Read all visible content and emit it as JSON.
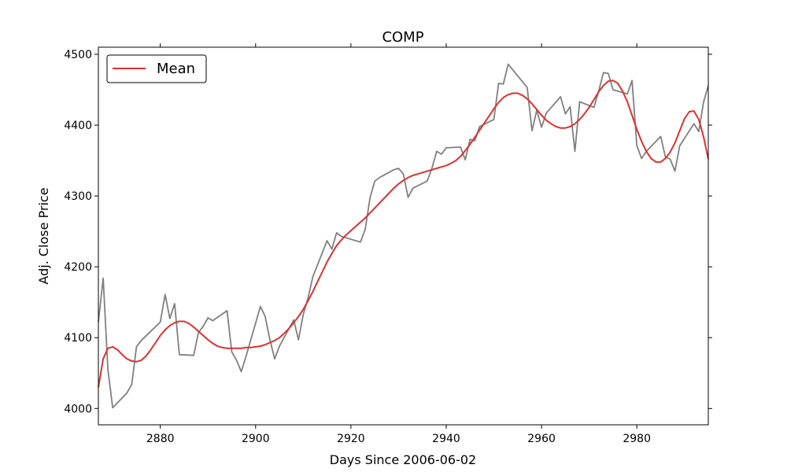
{
  "chart_data": {
    "type": "line",
    "title": "COMP",
    "xlabel": "Days Since 2006-06-02",
    "ylabel": "Adj. Close Price",
    "xlim": [
      2867,
      2995
    ],
    "ylim": [
      3977,
      4510
    ],
    "xticks": [
      2880,
      2900,
      2920,
      2940,
      2960,
      2980
    ],
    "yticks": [
      4000,
      4100,
      4200,
      4300,
      4400,
      4500
    ],
    "grid": false,
    "legend": {
      "placement": "top-left",
      "entries": [
        "Mean"
      ]
    },
    "colors": {
      "price": "#808080",
      "mean": "#e03030"
    },
    "series": [
      {
        "role": "price",
        "x": [
          2867,
          2868,
          2869,
          2870,
          2873,
          2874,
          2875,
          2876,
          2880,
          2881,
          2882,
          2883,
          2884,
          2887,
          2888,
          2889,
          2890,
          2891,
          2894,
          2895,
          2896,
          2897,
          2898,
          2901,
          2902,
          2903,
          2904,
          2905,
          2908,
          2909,
          2910,
          2911,
          2912,
          2915,
          2916,
          2917,
          2918,
          2919,
          2922,
          2923,
          2924,
          2925,
          2926,
          2929,
          2930,
          2931,
          2932,
          2933,
          2936,
          2937,
          2938,
          2939,
          2940,
          2943,
          2944,
          2945,
          2946,
          2947,
          2950,
          2951,
          2952,
          2953,
          2957,
          2958,
          2959,
          2960,
          2961,
          2964,
          2965,
          2966,
          2967,
          2968,
          2971,
          2972,
          2973,
          2974,
          2975,
          2978,
          2979,
          2980,
          2981,
          2982,
          2985,
          2986,
          2987,
          2988,
          2989,
          2992,
          2993,
          2994,
          2995
        ],
        "values": [
          4122,
          4184,
          4055,
          4001,
          4022,
          4034,
          4087,
          4096,
          4122,
          4161,
          4127,
          4148,
          4076,
          4075,
          4107,
          4116,
          4128,
          4124,
          4138,
          4080,
          4068,
          4052,
          4074,
          4144,
          4130,
          4097,
          4070,
          4088,
          4125,
          4097,
          4133,
          4156,
          4186,
          4237,
          4225,
          4248,
          4243,
          4241,
          4235,
          4253,
          4297,
          4321,
          4326,
          4337,
          4339,
          4331,
          4298,
          4311,
          4321,
          4339,
          4363,
          4359,
          4368,
          4369,
          4351,
          4380,
          4378,
          4398,
          4408,
          4459,
          4458,
          4486,
          4453,
          4392,
          4421,
          4397,
          4417,
          4440,
          4416,
          4426,
          4363,
          4433,
          4425,
          4448,
          4474,
          4473,
          4450,
          4444,
          4463,
          4371,
          4353,
          4363,
          4384,
          4355,
          4352,
          4335,
          4371,
          4402,
          4391,
          4432,
          4456
        ]
      },
      {
        "name": "Mean",
        "role": "mean",
        "x": [
          2867,
          2868,
          2869,
          2870,
          2871,
          2872,
          2873,
          2874,
          2875,
          2876,
          2877,
          2878,
          2879,
          2880,
          2881,
          2882,
          2883,
          2884,
          2885,
          2886,
          2887,
          2888,
          2889,
          2890,
          2891,
          2892,
          2893,
          2894,
          2895,
          2896,
          2897,
          2898,
          2899,
          2900,
          2901,
          2902,
          2903,
          2904,
          2905,
          2906,
          2907,
          2908,
          2909,
          2910,
          2911,
          2912,
          2913,
          2914,
          2915,
          2916,
          2917,
          2918,
          2919,
          2920,
          2921,
          2922,
          2923,
          2924,
          2925,
          2926,
          2927,
          2928,
          2929,
          2930,
          2931,
          2932,
          2933,
          2934,
          2935,
          2936,
          2937,
          2938,
          2939,
          2940,
          2941,
          2942,
          2943,
          2944,
          2945,
          2946,
          2947,
          2948,
          2949,
          2950,
          2951,
          2952,
          2953,
          2954,
          2955,
          2956,
          2957,
          2958,
          2959,
          2960,
          2961,
          2962,
          2963,
          2964,
          2965,
          2966,
          2967,
          2968,
          2969,
          2970,
          2971,
          2972,
          2973,
          2974,
          2975,
          2976,
          2977,
          2978,
          2979,
          2980,
          2981,
          2982,
          2983,
          2984,
          2985,
          2986,
          2987,
          2988,
          2989,
          2990,
          2991,
          2992,
          2993,
          2994,
          2995
        ],
        "values": [
          4030,
          4070,
          4085,
          4087,
          4083,
          4076,
          4070,
          4067,
          4066,
          4068,
          4074,
          4083,
          4093,
          4103,
          4111,
          4117,
          4121,
          4123,
          4123,
          4120,
          4115,
          4109,
          4103,
          4097,
          4092,
          4088,
          4086,
          4085,
          4085,
          4085,
          4085,
          4086,
          4086,
          4087,
          4088,
          4090,
          4093,
          4096,
          4100,
          4106,
          4113,
          4121,
          4130,
          4140,
          4152,
          4165,
          4179,
          4193,
          4207,
          4219,
          4230,
          4238,
          4245,
          4251,
          4257,
          4263,
          4269,
          4276,
          4283,
          4290,
          4297,
          4304,
          4311,
          4317,
          4322,
          4326,
          4329,
          4331,
          4333,
          4335,
          4337,
          4339,
          4341,
          4343,
          4346,
          4350,
          4356,
          4364,
          4373,
          4383,
          4393,
          4403,
          4413,
          4423,
          4432,
          4439,
          4443,
          4445,
          4445,
          4442,
          4437,
          4430,
          4422,
          4414,
          4407,
          4402,
          4398,
          4396,
          4396,
          4398,
          4402,
          4408,
          4416,
          4425,
          4436,
          4447,
          4456,
          4462,
          4463,
          4459,
          4448,
          4433,
          4414,
          4394,
          4377,
          4363,
          4353,
          4348,
          4348,
          4353,
          4362,
          4375,
          4392,
          4409,
          4419,
          4420,
          4408,
          4384,
          4352
        ]
      }
    ]
  }
}
